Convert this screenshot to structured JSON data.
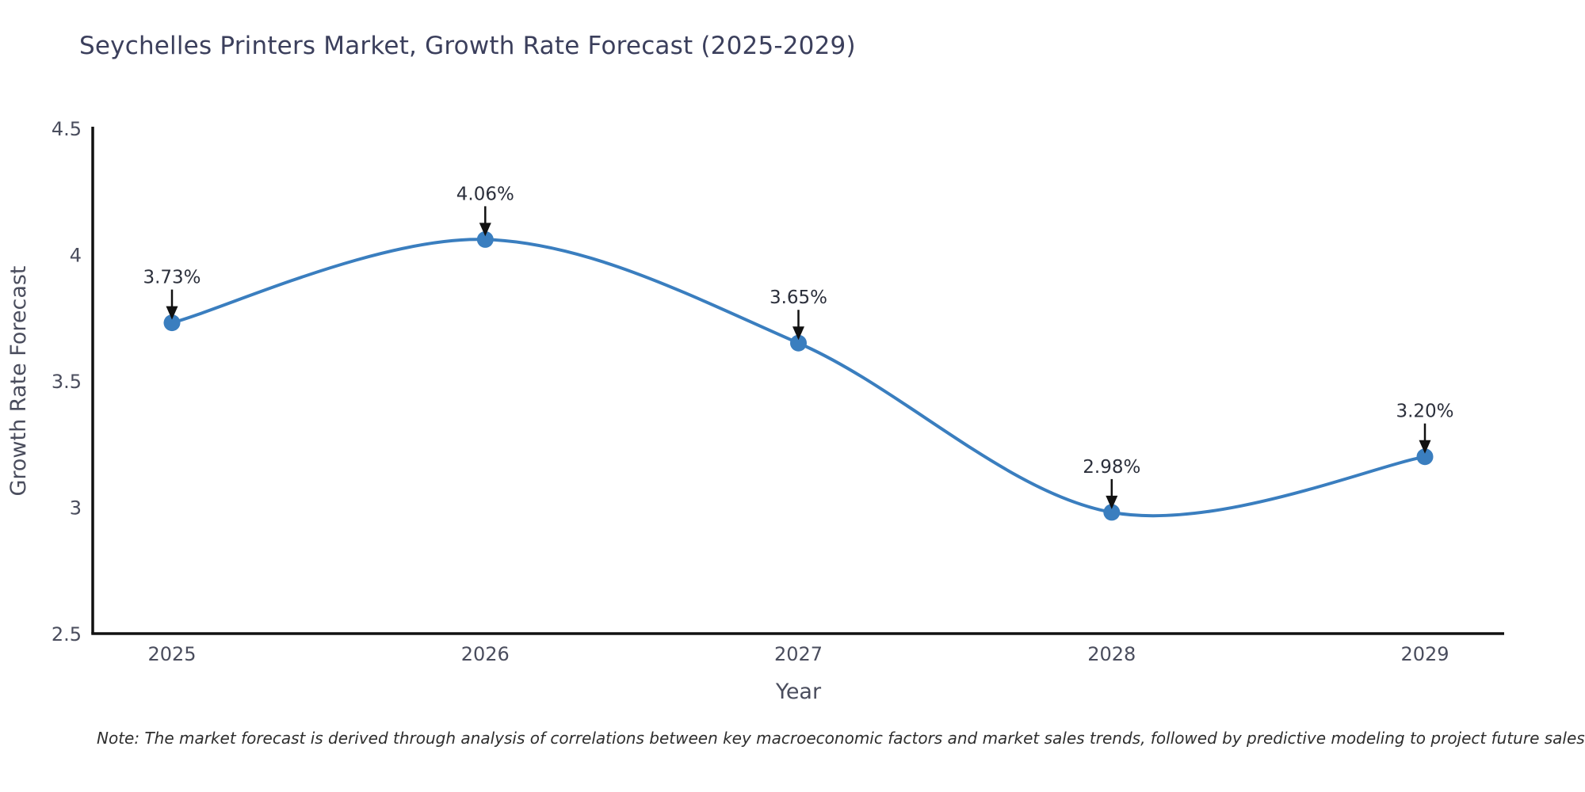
{
  "page": {
    "title": "Seychelles Printers Market, Growth Rate Forecast (2025-2029)",
    "note": "Note: The market forecast is derived through analysis of correlations between key macroeconomic factors and market sales trends, followed by predictive modeling to project future sales"
  },
  "chart_data": {
    "type": "line",
    "title": "Seychelles Printers Market, Growth Rate Forecast (2025-2029)",
    "xlabel": "Year",
    "ylabel": "Growth Rate Forecast",
    "categories": [
      "2025",
      "2026",
      "2027",
      "2028",
      "2029"
    ],
    "values": [
      3.73,
      4.06,
      3.65,
      2.98,
      3.2
    ],
    "point_labels": [
      "3.73%",
      "4.06%",
      "3.65%",
      "2.98%",
      "3.20%"
    ],
    "ylim": [
      2.5,
      4.5
    ],
    "yticks": [
      2.5,
      3.0,
      3.5,
      4.0,
      4.5
    ],
    "ytick_labels": [
      "2.5",
      "3",
      "3.5",
      "4",
      "4.5"
    ],
    "line_shape": "spline",
    "grid": false,
    "legend_position": "none",
    "colors": {
      "line": "#3a7ebf",
      "marker": "#3a7ebf",
      "axis_line": "#111111",
      "tick_text": "#4a4d5d",
      "axis_title_text": "#4a4d5d",
      "annotation_text": "#2b2f3b",
      "annotation_arrow": "#111111",
      "background": "#ffffff"
    }
  }
}
